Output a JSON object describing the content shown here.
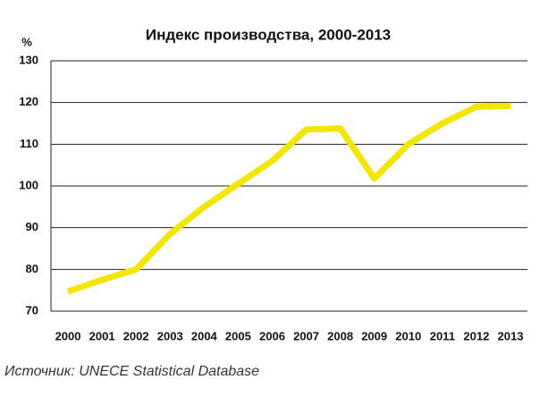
{
  "chart_data": {
    "type": "line",
    "title": "Индекс производства, 2000-2013",
    "y_label": "%",
    "source": "Источник: UNECE Statistical Database",
    "categories": [
      "2000",
      "2001",
      "2002",
      "2003",
      "2004",
      "2005",
      "2006",
      "2007",
      "2008",
      "2009",
      "2010",
      "2011",
      "2012",
      "2013"
    ],
    "series": [
      {
        "color": "#f3e600",
        "values": [
          74.7,
          77.5,
          80,
          88.5,
          95,
          100.5,
          106,
          113.5,
          113.8,
          101.8,
          110,
          115,
          119,
          119.2
        ]
      }
    ],
    "ylim": [
      70,
      130
    ],
    "yticks": [
      70,
      80,
      90,
      100,
      110,
      120,
      130
    ],
    "grid": true
  }
}
